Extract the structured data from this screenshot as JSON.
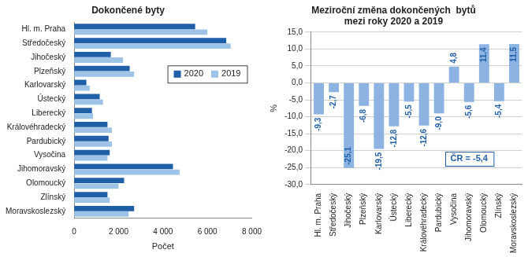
{
  "chart_data": [
    {
      "type": "bar",
      "title": "Dokončené byty",
      "orientation": "horizontal",
      "categories": [
        "Hl. m. Praha",
        "Středočeský",
        "Jihočeský",
        "Plzeňský",
        "Karlovarský",
        "Ústecký",
        "Liberecký",
        "Královéhradecký",
        "Pardubický",
        "Vysočina",
        "Jihomoravský",
        "Olomoucký",
        "Zlínský",
        "Moravskoslezský"
      ],
      "series": [
        {
          "name": "2020",
          "color": "#1f5fa8",
          "values": [
            5450,
            6850,
            1650,
            2500,
            550,
            1150,
            800,
            1500,
            1550,
            1600,
            4450,
            2250,
            1500,
            2700
          ]
        },
        {
          "name": "2019",
          "color": "#9dc3e6",
          "values": [
            6000,
            7050,
            2200,
            2700,
            700,
            1300,
            850,
            1700,
            1700,
            1500,
            4750,
            2000,
            1600,
            2450
          ]
        }
      ],
      "x_label": "Počet",
      "xlim": [
        0,
        8000
      ],
      "xticks": [
        0,
        {
          "value": 2000,
          "label": "2 000"
        },
        {
          "value": 4000,
          "label": "4 000"
        },
        {
          "value": 6000,
          "label": "6 000"
        },
        {
          "value": 8000,
          "label": "8 000"
        }
      ],
      "grid": false,
      "legend": "right"
    },
    {
      "type": "bar",
      "title": [
        "Meziroční změna dokončených  bytů",
        "mezi roky 2020 a 2019"
      ],
      "categories": [
        "Hl. m. Praha",
        "Středočeský",
        "Jihočeský",
        "Plzeňský",
        "Karlovarský",
        "Ústecký",
        "Liberecký",
        "Královéhradecký",
        "Pardubický",
        "Vysočina",
        "Jihomoravský",
        "Olomoucký",
        "Zlínský",
        "Moravskoslezský"
      ],
      "values": [
        -9.3,
        -2.7,
        -25.1,
        -6.8,
        -19.5,
        -12.8,
        -5.5,
        -12.6,
        -9.0,
        4.8,
        -5.6,
        11.4,
        -5.4,
        11.5
      ],
      "value_labels": [
        "-9,3",
        "-2,7",
        "-25,1",
        "-6,8",
        "-19,5",
        "-12,8",
        "-5,5",
        "-12,6",
        "-9,0",
        "4,8",
        "-5,6",
        "11,4",
        "-5,4",
        "11,5"
      ],
      "color": "#8db3e2",
      "y_label": "%",
      "ylim": [
        -30,
        15
      ],
      "yticks": [
        {
          "value": -30,
          "label": "-30,0"
        },
        {
          "value": -25,
          "label": "-25,0"
        },
        {
          "value": -20,
          "label": "-20,0"
        },
        {
          "value": -15,
          "label": "-15,0"
        },
        {
          "value": -10,
          "label": "-10,0"
        },
        {
          "value": -5,
          "label": "-5,0"
        },
        {
          "value": 0,
          "label": "0,0"
        },
        {
          "value": 5,
          "label": "5,0"
        },
        {
          "value": 10,
          "label": "10,0"
        },
        {
          "value": 15,
          "label": "15,0"
        }
      ],
      "annotation": "ČR = -5,4",
      "grid": true,
      "data_labels": true
    }
  ]
}
